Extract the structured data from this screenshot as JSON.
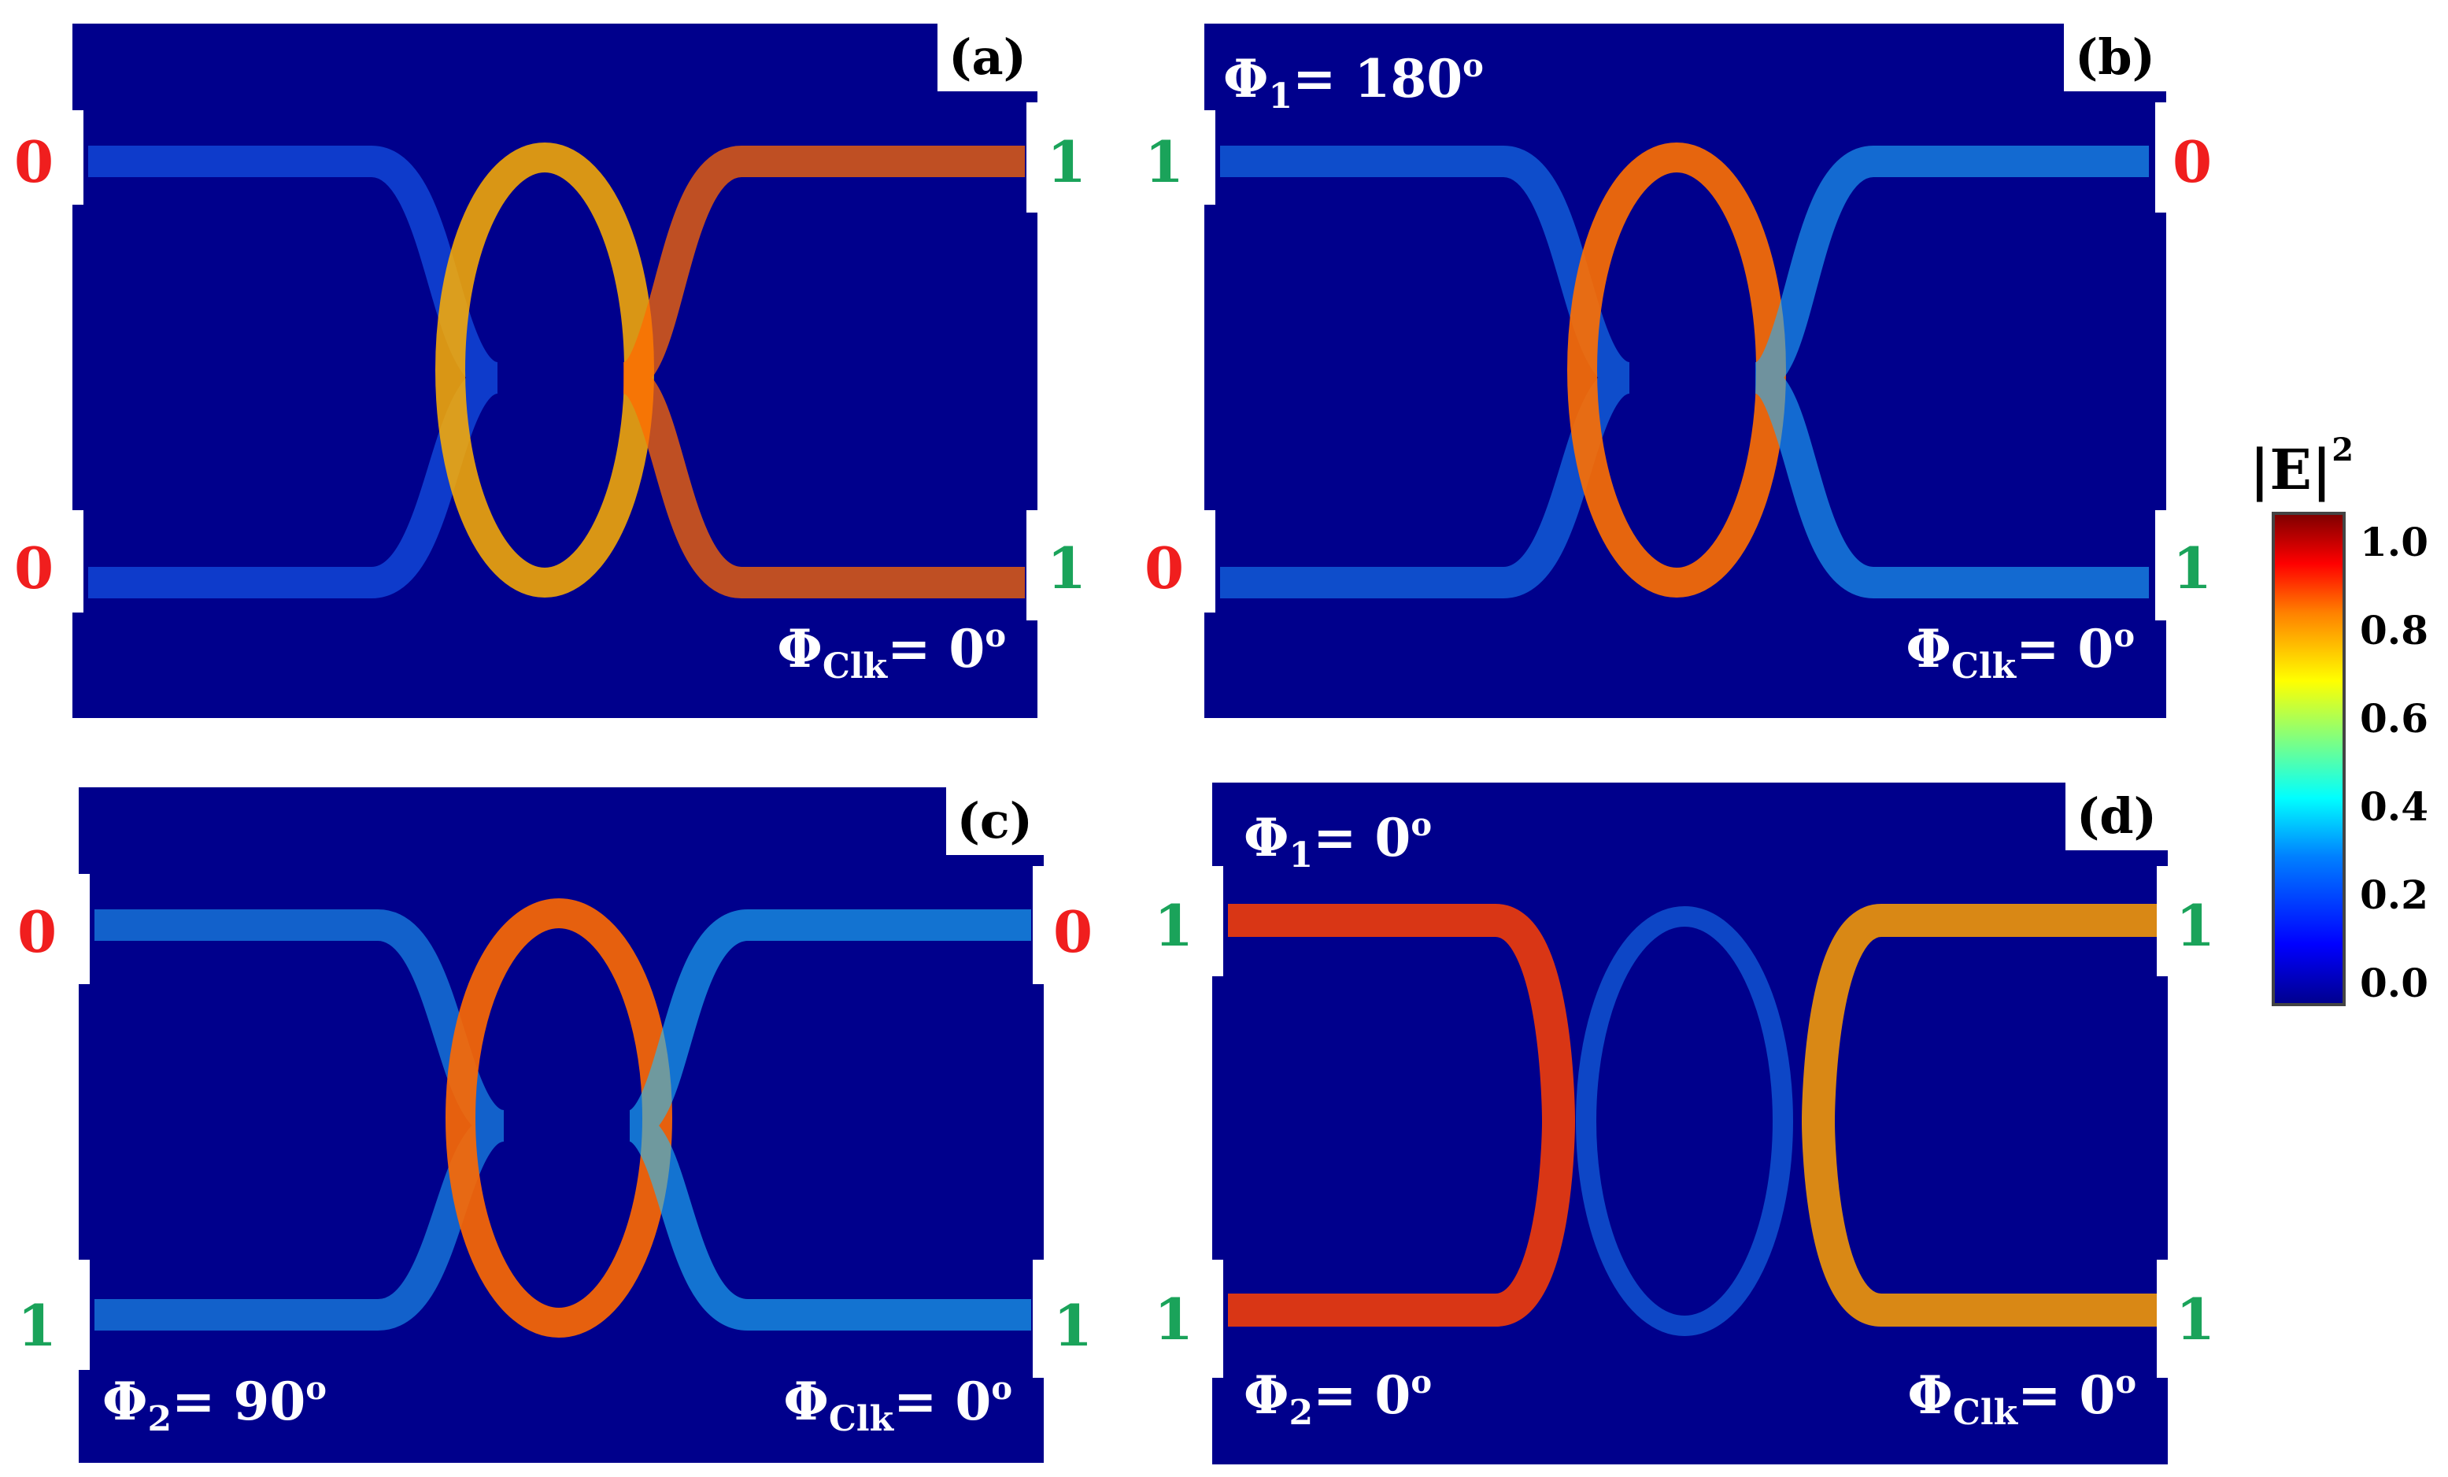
{
  "panels": [
    {
      "label": "(a)",
      "phases": [
        {
          "symbol": "Φ",
          "sub": "Clk",
          "eq": "= 0",
          "deg": "o"
        }
      ],
      "left_states": [
        {
          "value": "0",
          "color": "red"
        },
        {
          "value": "0",
          "color": "red"
        }
      ],
      "right_states": [
        {
          "value": "1",
          "color": "green"
        },
        {
          "value": "1",
          "color": "green"
        }
      ]
    },
    {
      "label": "(b)",
      "phases": [
        {
          "symbol": "Φ",
          "sub": "1",
          "eq": "= 180",
          "deg": "o"
        },
        {
          "symbol": "Φ",
          "sub": "Clk",
          "eq": "= 0",
          "deg": "o"
        }
      ],
      "left_states": [
        {
          "value": "1",
          "color": "green"
        },
        {
          "value": "0",
          "color": "red"
        }
      ],
      "right_states": [
        {
          "value": "0",
          "color": "red"
        },
        {
          "value": "1",
          "color": "green"
        }
      ]
    },
    {
      "label": "(c)",
      "phases": [
        {
          "symbol": "Φ",
          "sub": "2",
          "eq": "= 90",
          "deg": "o"
        },
        {
          "symbol": "Φ",
          "sub": "Clk",
          "eq": "= 0",
          "deg": "o"
        }
      ],
      "left_states": [
        {
          "value": "0",
          "color": "red"
        },
        {
          "value": "1",
          "color": "green"
        }
      ],
      "right_states": [
        {
          "value": "0",
          "color": "red"
        },
        {
          "value": "1",
          "color": "green"
        }
      ]
    },
    {
      "label": "(d)",
      "phases": [
        {
          "symbol": "Φ",
          "sub": "1",
          "eq": "= 0",
          "deg": "o"
        },
        {
          "symbol": "Φ",
          "sub": "2",
          "eq": "= 0",
          "deg": "o"
        },
        {
          "symbol": "Φ",
          "sub": "Clk",
          "eq": "= 0",
          "deg": "o"
        }
      ],
      "left_states": [
        {
          "value": "1",
          "color": "green"
        },
        {
          "value": "1",
          "color": "green"
        }
      ],
      "right_states": [
        {
          "value": "1",
          "color": "green"
        },
        {
          "value": "1",
          "color": "green"
        }
      ]
    }
  ],
  "colorbar": {
    "title": "|E|",
    "superscript": "2",
    "ticks": [
      "1.0",
      "0.8",
      "0.6",
      "0.4",
      "0.2",
      "0.0"
    ],
    "range": [
      0.0,
      1.0
    ]
  },
  "colors": {
    "background": "#00008c",
    "state_zero": "#f01e1e",
    "state_one": "#1aa35a"
  }
}
